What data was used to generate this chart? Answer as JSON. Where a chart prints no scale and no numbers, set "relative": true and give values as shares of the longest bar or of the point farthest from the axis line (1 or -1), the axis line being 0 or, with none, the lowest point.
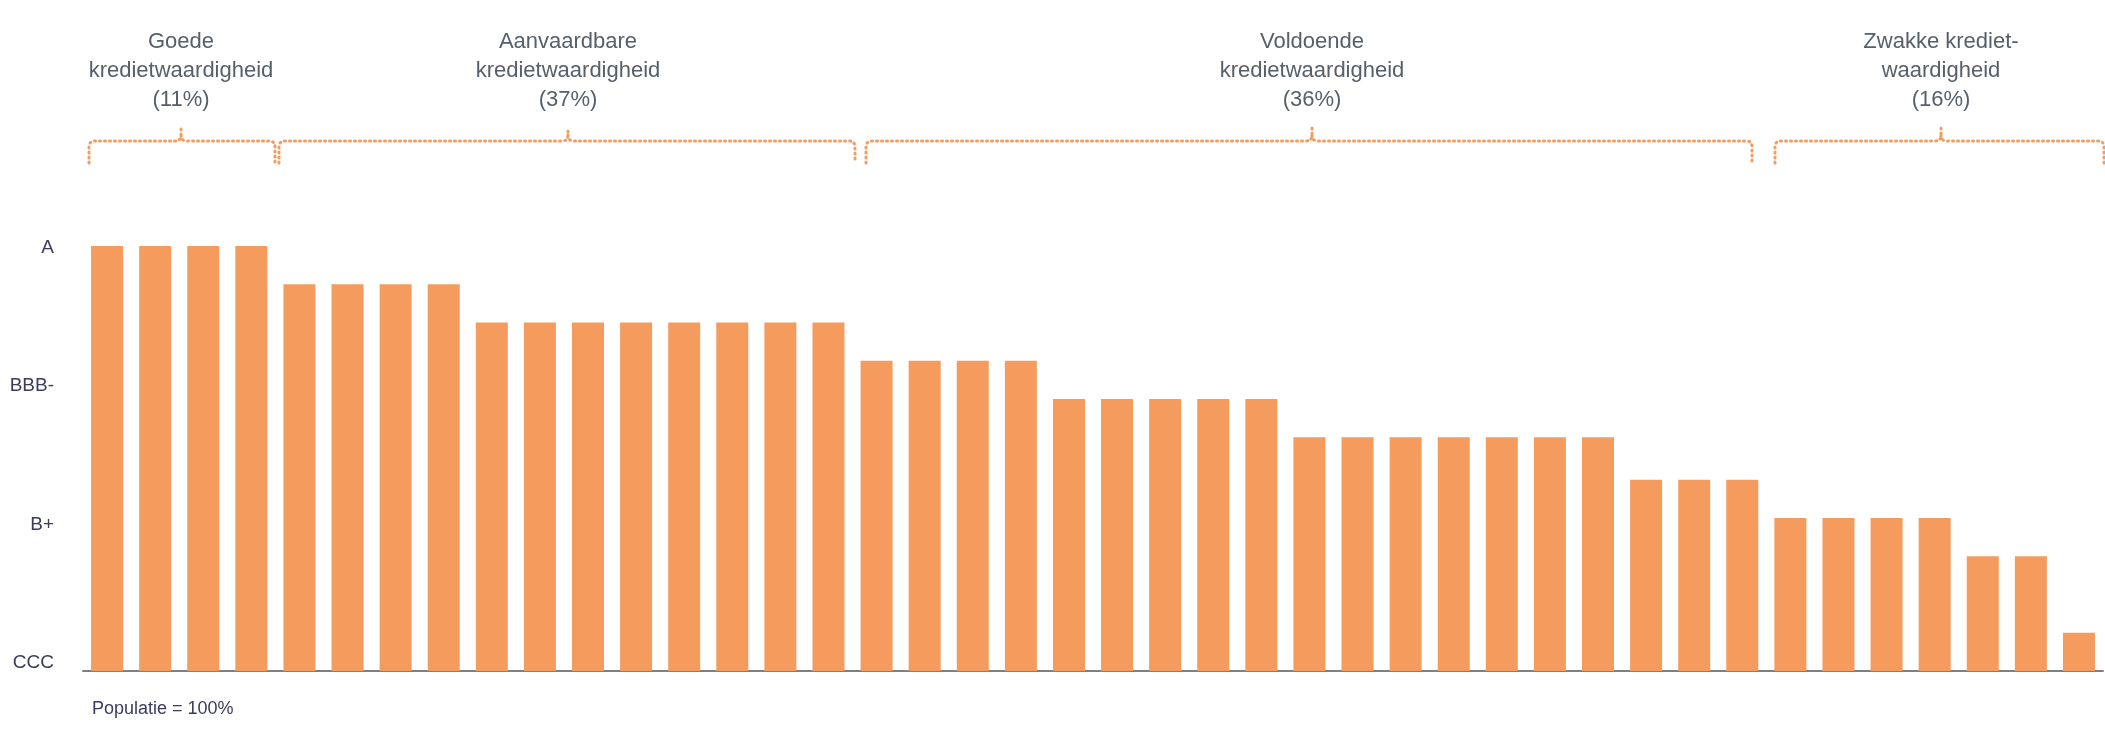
{
  "chart_data": {
    "type": "bar",
    "categories": [
      null,
      null,
      null,
      null,
      null,
      null,
      null,
      null,
      null,
      null,
      null,
      null,
      null,
      null,
      null,
      null,
      null,
      null,
      null,
      null,
      null,
      null,
      null,
      null,
      null,
      null,
      null,
      null,
      null,
      null,
      null,
      null,
      null,
      null,
      null,
      null,
      null,
      null,
      null,
      null,
      null,
      null
    ],
    "values": [
      1,
      1,
      1,
      1,
      0.91,
      0.91,
      0.91,
      0.91,
      0.82,
      0.82,
      0.82,
      0.82,
      0.82,
      0.82,
      0.82,
      0.82,
      0.73,
      0.73,
      0.73,
      0.73,
      0.64,
      0.64,
      0.64,
      0.64,
      0.64,
      0.55,
      0.55,
      0.55,
      0.55,
      0.55,
      0.55,
      0.55,
      0.45,
      0.45,
      0.45,
      0.36,
      0.36,
      0.36,
      0.36,
      0.27,
      0.27,
      0.09
    ],
    "relative": true,
    "color": "#f59b5e",
    "grid": false,
    "annotations": [
      "Goede\nkredietwaardigheid\n(11%)",
      "Aanvaardbare\nkredietwaardigheid\n(37%)",
      "Voldoende\nkredietwaardigheid\n(36%)",
      "Zwakke krediet-\nwaardigheid\n(16%)",
      "A",
      "BBB-",
      "B+",
      "CCC",
      "Populatie = 100%"
    ]
  }
}
